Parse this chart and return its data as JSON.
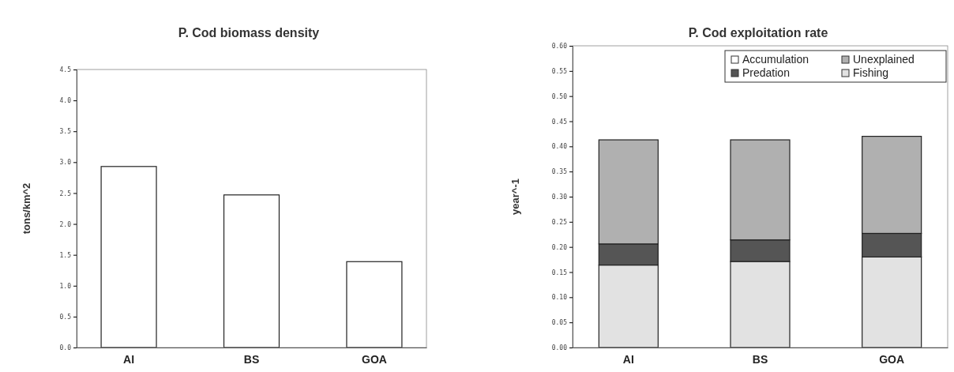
{
  "chart_data": [
    {
      "type": "bar",
      "title": "P. Cod biomass density",
      "ylabel": "tons/km^2",
      "categories": [
        "AI",
        "BS",
        "GOA"
      ],
      "values": [
        2.93,
        2.47,
        1.39
      ],
      "color": "#ffffff",
      "ylim": [
        0,
        4.5
      ],
      "yticks": [
        {
          "value": 0,
          "label": "0.0"
        },
        {
          "value": 0.5,
          "label": "0.5"
        },
        {
          "value": 1,
          "label": "1.0"
        },
        {
          "value": 1.5,
          "label": "1.5"
        },
        {
          "value": 2,
          "label": "2.0"
        },
        {
          "value": 2.5,
          "label": "2.5"
        },
        {
          "value": 3,
          "label": "3.0"
        },
        {
          "value": 3.5,
          "label": "3.5"
        },
        {
          "value": 4,
          "label": "4.0"
        },
        {
          "value": 4.5,
          "label": "4.5"
        }
      ],
      "grid": false,
      "legend": false
    },
    {
      "type": "bar",
      "title": "P. Cod exploitation rate",
      "ylabel": "year^-1",
      "categories": [
        "AI",
        "BS",
        "GOA"
      ],
      "stacked": true,
      "series": [
        {
          "name": "Fishing",
          "color": "#e2e2e2",
          "values": [
            0.164,
            0.171,
            0.18
          ]
        },
        {
          "name": "Predation",
          "color": "#555555",
          "values": [
            0.042,
            0.043,
            0.047
          ]
        },
        {
          "name": "Unexplained",
          "color": "#b0b0b0",
          "values": [
            0.207,
            0.199,
            0.193
          ]
        },
        {
          "name": "Accumulation",
          "color": "#ffffff",
          "values": [
            0,
            0,
            0
          ]
        }
      ],
      "ylim": [
        0,
        0.6
      ],
      "yticks": [
        {
          "value": 0,
          "label": "0.00"
        },
        {
          "value": 0.05,
          "label": "0.05"
        },
        {
          "value": 0.1,
          "label": "0.10"
        },
        {
          "value": 0.15,
          "label": "0.15"
        },
        {
          "value": 0.2,
          "label": "0.20"
        },
        {
          "value": 0.25,
          "label": "0.25"
        },
        {
          "value": 0.3,
          "label": "0.30"
        },
        {
          "value": 0.35,
          "label": "0.35"
        },
        {
          "value": 0.4,
          "label": "0.40"
        },
        {
          "value": 0.45,
          "label": "0.45"
        },
        {
          "value": 0.5,
          "label": "0.50"
        },
        {
          "value": 0.55,
          "label": "0.55"
        },
        {
          "value": 0.6,
          "label": "0.60"
        }
      ],
      "grid": false,
      "legend": "top right"
    }
  ]
}
